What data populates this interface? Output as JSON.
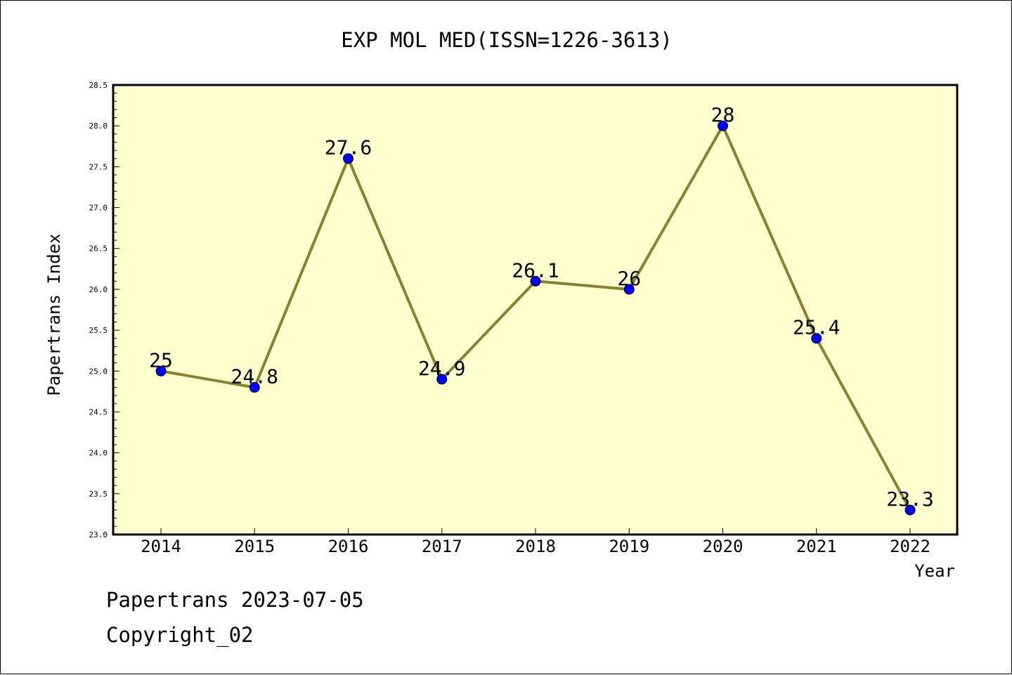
{
  "chart_data": {
    "type": "line",
    "title": "EXP MOL MED(ISSN=1226-3613)",
    "xlabel": "Year",
    "ylabel": "Papertrans Index",
    "categories": [
      "2014",
      "2015",
      "2016",
      "2017",
      "2018",
      "2019",
      "2020",
      "2021",
      "2022"
    ],
    "series": [
      {
        "values": [
          25,
          24.8,
          27.6,
          24.9,
          26.1,
          26,
          28,
          25.4,
          23.3
        ]
      }
    ],
    "point_labels": [
      "25",
      "24.8",
      "27.6",
      "24.9",
      "26.1",
      "26",
      "28",
      "25.4",
      "23.3"
    ],
    "ylim": [
      23.0,
      28.5
    ],
    "yticks": [
      23.0,
      23.5,
      24.0,
      24.5,
      25.0,
      25.5,
      26.0,
      26.5,
      27.0,
      27.5,
      28.0,
      28.5
    ],
    "ytick_labels": [
      "23.0",
      "23.5",
      "24.0",
      "24.5",
      "25.0",
      "25.5",
      "26.0",
      "26.5",
      "27.0",
      "27.5",
      "28.0",
      "28.5"
    ],
    "grid": false,
    "plot_background": "#ffffd0",
    "line_color": "#8b8032",
    "marker_color": "#0000ff"
  },
  "footer": {
    "date_text": "Papertrans 2023-07-05",
    "copyright_text": "Copyright_02"
  }
}
